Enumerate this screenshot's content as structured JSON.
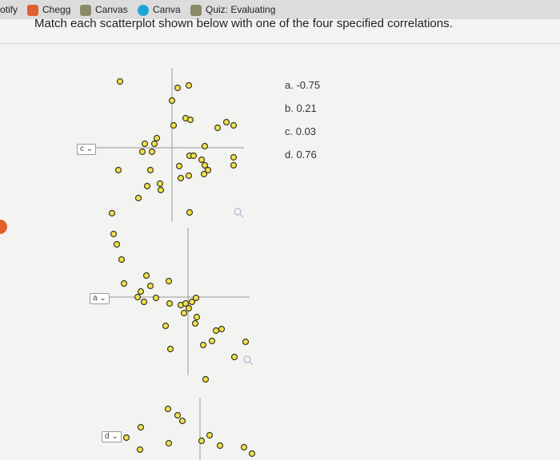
{
  "tabs": [
    "otify",
    "Chegg",
    "Canvas",
    "Canva",
    "Quiz: Evaluating"
  ],
  "question": "Match each scatterplot shown below with one of the four specified correlations.",
  "options": [
    "a. -0.75",
    "b. 0.21",
    "c. 0.03",
    "d. 0.76"
  ],
  "plots": [
    {
      "selection": "c"
    },
    {
      "selection": "a"
    },
    {
      "selection": "d"
    }
  ]
}
